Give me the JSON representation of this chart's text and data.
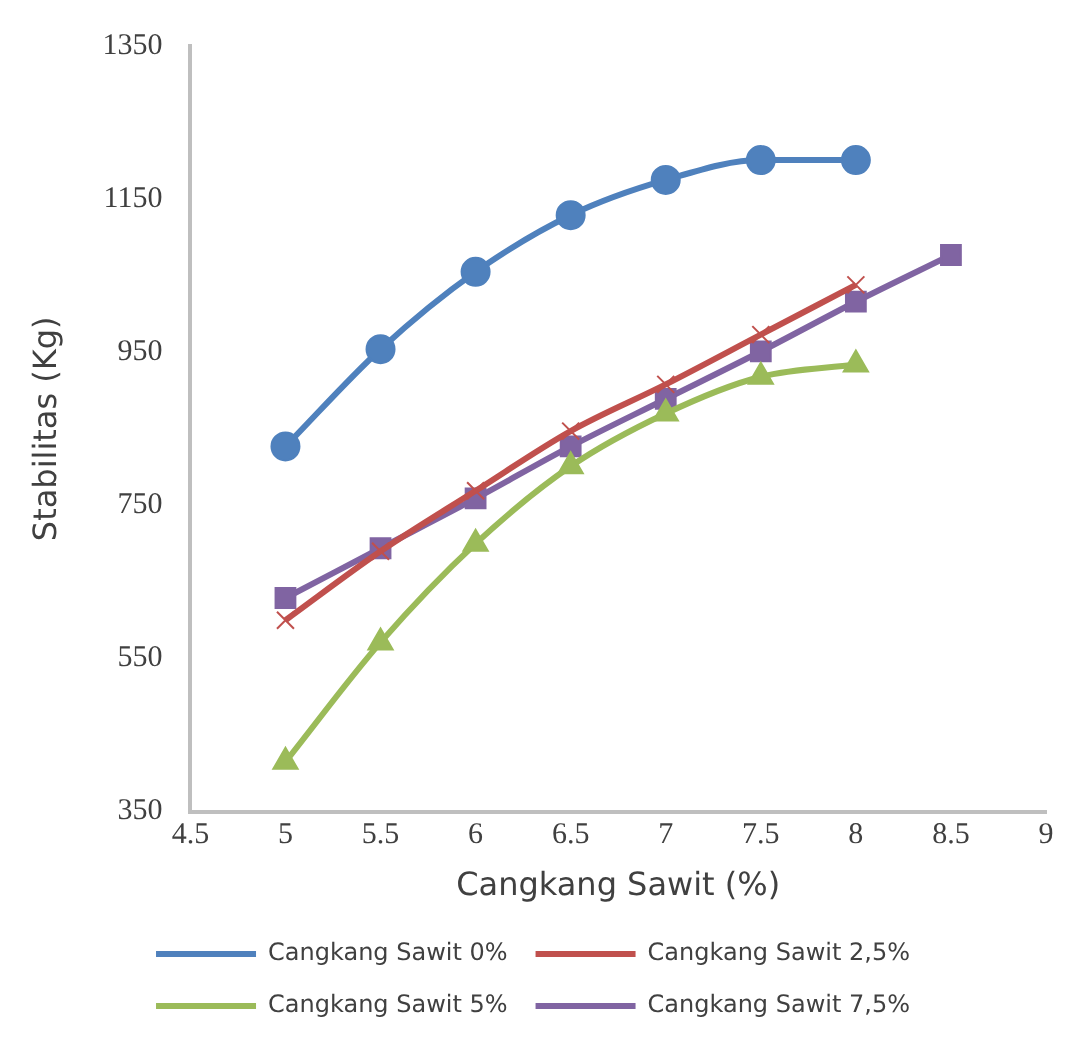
{
  "chart_data": {
    "type": "line",
    "xlabel": "Cangkang Sawit (%)",
    "ylabel": "Stabilitas (Kg)",
    "x": [
      5,
      5.5,
      6,
      6.5,
      7,
      7.5,
      8,
      8.5
    ],
    "series": [
      {
        "name": "Cangkang Sawit 0%",
        "color": "#4f81bd",
        "marker": "circle",
        "values": [
          827,
          954,
          1055,
          1129,
          1175,
          1201,
          1201,
          null
        ]
      },
      {
        "name": "Cangkang Sawit 2,5%",
        "color": "#c0504d",
        "marker": "cross",
        "values": [
          600,
          690,
          769,
          847,
          908,
          973,
          1038,
          null
        ]
      },
      {
        "name": "Cangkang Sawit 5%",
        "color": "#9bbb59",
        "marker": "triangle",
        "values": [
          415,
          571,
          700,
          801,
          870,
          918,
          934,
          null
        ]
      },
      {
        "name": "Cangkang Sawit 7,5%",
        "color": "#8064a2",
        "marker": "square",
        "values": [
          629,
          694,
          759,
          827,
          889,
          951,
          1016,
          1077
        ]
      }
    ],
    "xlim": [
      4.5,
      9
    ],
    "xticks": [
      4.5,
      5,
      5.5,
      6,
      6.5,
      7,
      7.5,
      8,
      8.5,
      9
    ],
    "ylim": [
      350,
      1350
    ],
    "yticks": [
      350,
      550,
      750,
      950,
      1150,
      1350
    ],
    "grid": false,
    "legend": "bottom"
  }
}
